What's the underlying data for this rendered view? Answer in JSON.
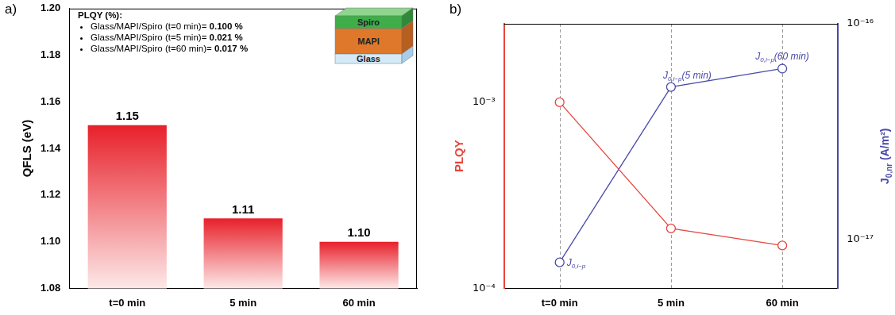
{
  "chart_data": [
    {
      "type": "bar",
      "panel_label": "a)",
      "categories": [
        "t=0 min",
        "5 min",
        "60 min"
      ],
      "values": [
        1.15,
        1.11,
        1.1
      ],
      "value_labels": [
        "1.15",
        "1.11",
        "1.10"
      ],
      "data_labels": true,
      "color": "#e8202a",
      "y_label": "QFLS (eV)",
      "ylim": [
        1.08,
        1.2
      ],
      "yticks": [
        1.08,
        {
          "value": 1.1,
          "label": "1.10"
        },
        1.12,
        1.14,
        1.16,
        1.18,
        {
          "value": 1.2,
          "label": "1.20"
        }
      ],
      "grid": false,
      "annotation": {
        "title": "PLQY (%):",
        "items": [
          {
            "text": "Glass/MAPI/Spiro (t=0 min)= ",
            "value_label": "0.100 %"
          },
          {
            "text": "Glass/MAPI/Spiro (t=5 min)= ",
            "value_label": "0.021 %"
          },
          {
            "text": "Glass/MAPI/Spiro (t=60 min)= ",
            "value_label": "0.017 %"
          }
        ]
      },
      "inset_layers": [
        "Spiro",
        "MAPI",
        "Glass"
      ]
    },
    {
      "type": "line",
      "panel_label": "b)",
      "categories": [
        "t=0 min",
        "5 min",
        "60 min"
      ],
      "log": "y",
      "grid": true,
      "y_label": "PLQY",
      "y2_label": {
        "base": "J",
        "sub": "0,nr",
        "suffix": " (A/m²)"
      },
      "ylim": [
        0.0001,
        0.00264
      ],
      "yticks": [
        {
          "value": 0.0001,
          "label": "10⁻⁴"
        },
        {
          "value": 0.001,
          "label": "10⁻³"
        }
      ],
      "y2lim": [
        5.95e-18,
        1e-16
      ],
      "y2ticks": [
        {
          "value": 1e-17,
          "label": "10⁻¹⁷"
        },
        {
          "value": 1e-16,
          "label": "10⁻¹⁶"
        }
      ],
      "series": [
        {
          "color": "#e8453c",
          "marker": "circle",
          "values": [
            0.001,
            0.00021,
            0.00017
          ]
        },
        {
          "color": "#4a4aa8",
          "marker": "circle",
          "axis": "y2",
          "values": [
            7.85e-18,
            5.1e-17,
            6.2e-17
          ],
          "point_labels": [
            {
              "base": "J",
              "sub": "0,i−p"
            },
            {
              "base": "J",
              "sub": "0,i−p",
              "suffix": "(5 min)"
            },
            {
              "base": "J",
              "sub": "0,i−p",
              "suffix": "(60 min)"
            }
          ]
        }
      ]
    }
  ]
}
